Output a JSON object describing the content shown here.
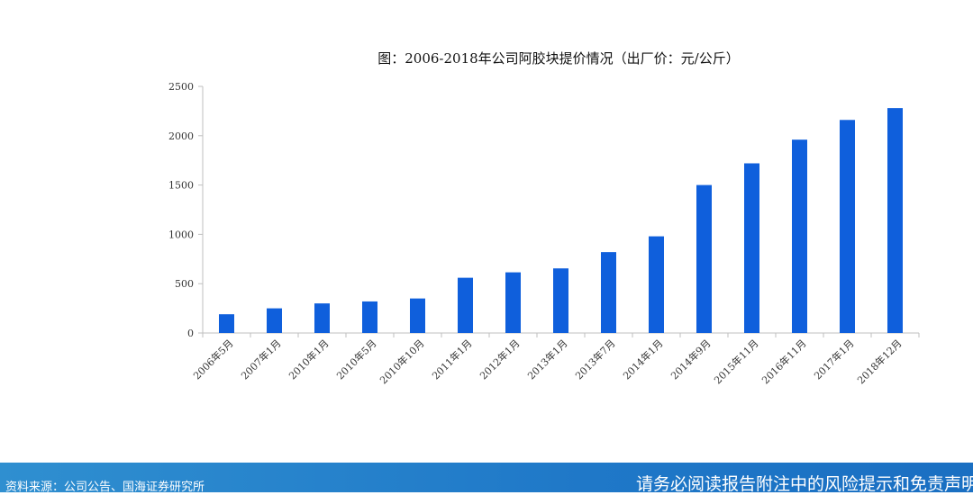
{
  "chart_data": {
    "type": "bar",
    "title": "图：2006-2018年公司阿胶块提价情况（出厂价：元/公斤）",
    "categories": [
      "2006年5月",
      "2007年1月",
      "2010年1月",
      "2010年5月",
      "2010年10月",
      "2011年1月",
      "2012年1月",
      "2013年1月",
      "2013年7月",
      "2014年1月",
      "2014年9月",
      "2015年11月",
      "2016年11月",
      "2017年1月",
      "2018年12月"
    ],
    "values": [
      190,
      250,
      300,
      320,
      350,
      560,
      615,
      655,
      820,
      980,
      1500,
      1720,
      1960,
      2160,
      2280
    ],
    "ylim": [
      0,
      2500
    ],
    "yticks": [
      0,
      500,
      1000,
      1500,
      2000,
      2500
    ],
    "color": "#0f5fdc",
    "grid": false,
    "legend": "none"
  },
  "footer": {
    "source": "资料来源：公司公告、国海证券研究所",
    "disclaimer": "请务必阅读报告附注中的风险提示和免责声明"
  }
}
